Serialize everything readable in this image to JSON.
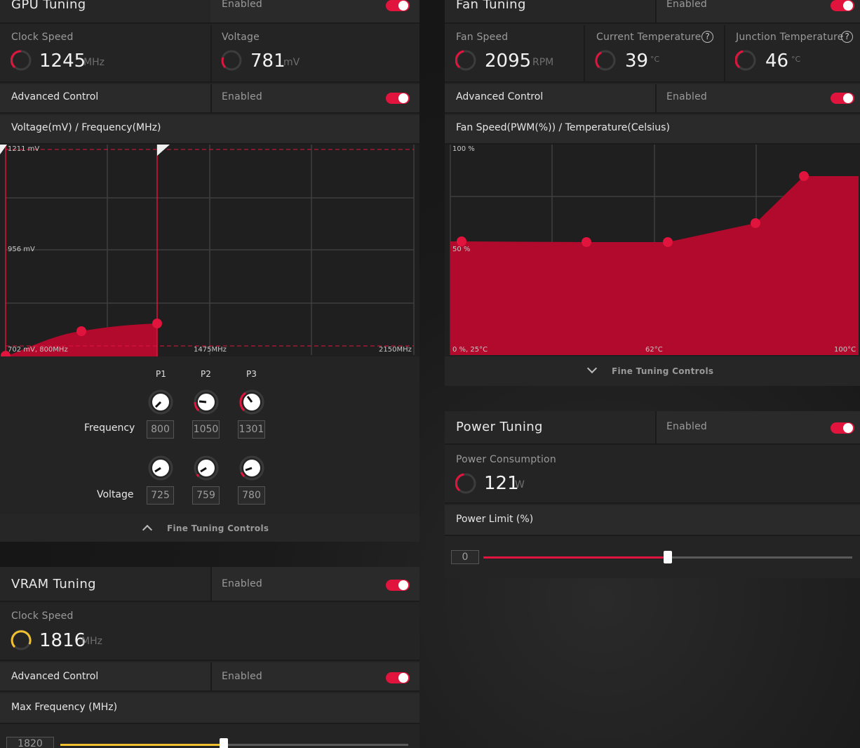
{
  "gpu": {
    "title": "GPU Tuning",
    "enabled_label": "Enabled",
    "clock": {
      "label": "Clock Speed",
      "value": "1245",
      "unit": "MHz"
    },
    "voltage": {
      "label": "Voltage",
      "value": "781",
      "unit": "mV"
    },
    "advanced": {
      "label": "Advanced Control",
      "enabled_label": "Enabled"
    },
    "graph_title": "Voltage(mV) / Frequency(MHz)",
    "graph_labels": {
      "top": "1211 mV",
      "mid": "956 mV",
      "origin": "702 mV, 800MHz",
      "xmid": "1475MHz",
      "xmax": "2150MHz"
    },
    "knobs": {
      "headers": [
        "P1",
        "P2",
        "P3"
      ],
      "frequency_label": "Frequency",
      "voltage_label": "Voltage",
      "frequency": [
        "800",
        "1050",
        "1301"
      ],
      "voltage": [
        "725",
        "759",
        "780"
      ]
    },
    "fine_tuning": "Fine Tuning Controls"
  },
  "fan": {
    "title": "Fan Tuning",
    "enabled_label": "Enabled",
    "speed": {
      "label": "Fan Speed",
      "value": "2095",
      "unit": "RPM"
    },
    "current_temp": {
      "label": "Current Temperature",
      "value": "39",
      "unit": "°C"
    },
    "junction_temp": {
      "label": "Junction Temperature",
      "value": "46",
      "unit": "°C"
    },
    "advanced": {
      "label": "Advanced Control",
      "enabled_label": "Enabled"
    },
    "graph_title": "Fan Speed(PWM(%)) / Temperature(Celsius)",
    "graph_labels": {
      "top": "100 %",
      "mid": "50 %",
      "origin": "0 %, 25°C",
      "xmid": "62°C",
      "xmax": "100°C"
    },
    "fine_tuning": "Fine Tuning Controls"
  },
  "power": {
    "title": "Power Tuning",
    "enabled_label": "Enabled",
    "consumption": {
      "label": "Power Consumption",
      "value": "121",
      "unit": "W"
    },
    "limit_label": "Power Limit (%)",
    "limit_value": "0",
    "slider_fraction": 0.5
  },
  "vram": {
    "title": "VRAM Tuning",
    "enabled_label": "Enabled",
    "clock": {
      "label": "Clock Speed",
      "value": "1816",
      "unit": "MHz"
    },
    "advanced": {
      "label": "Advanced Control",
      "enabled_label": "Enabled"
    },
    "max_freq_label": "Max Frequency (MHz)",
    "max_freq_value": "1820",
    "slider_fraction": 0.47
  },
  "colors": {
    "accent": "#e0143c",
    "vram_accent": "#f0c030",
    "fill": "#b20a2c"
  }
}
